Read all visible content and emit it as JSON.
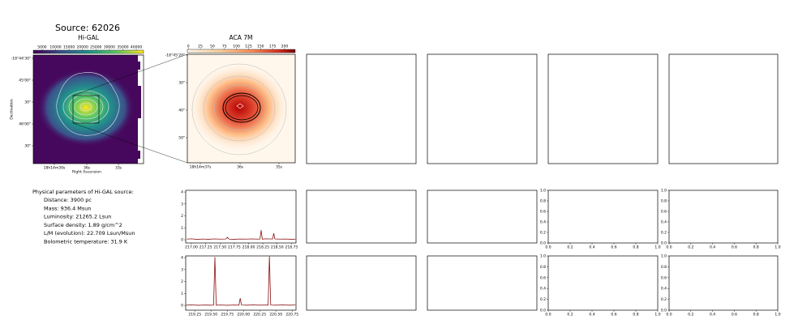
{
  "title": "Source: 62026",
  "higal": {
    "title": "Hi-GAL",
    "colorbar_lim": [
      1700,
      42700
    ],
    "colorbar_ticks": [
      5000,
      10000,
      15000,
      20000,
      25000,
      30000,
      35000,
      40000
    ],
    "xticks": [
      "18h14m39s",
      "36s",
      "33s"
    ],
    "yticks": [
      "-18°44'30\"",
      "45'00\"",
      "30\"",
      "46'00\"",
      "30\""
    ],
    "xlabel": "Right Ascension",
    "ylabel": "Declination"
  },
  "aca": {
    "title": "ACA 7M",
    "colorbar_lim": [
      -2,
      222
    ],
    "colorbar_ticks": [
      0,
      25,
      50,
      75,
      100,
      125,
      150,
      175,
      200
    ],
    "xticks": [
      "18h14m37s",
      "36s",
      "35s"
    ],
    "yticks": [
      "-18°45'20\"",
      "30\"",
      "40\"",
      "50\""
    ]
  },
  "params": {
    "heading": "Physical parameters of Hi-GAL source:",
    "lines": [
      "Distance: 3900 pc",
      "Mass: 936.4 Msun",
      "Luminosity: 21265.2 Lsun",
      "Surface density: 1.89 g/cm^2",
      "L/M (evolution): 22.709 Lsun/Msun",
      "Bolometric temperature: 31.9 K"
    ]
  },
  "chart_data": [
    {
      "type": "line",
      "xlim": [
        216.9,
        218.83
      ],
      "ylim": [
        -0.27,
        4.14
      ],
      "xticks": [
        {
          "value": 217,
          "label": "217.00"
        },
        217.25,
        {
          "value": 217.5,
          "label": "217.50"
        },
        217.75,
        {
          "value": 218,
          "label": "218.00"
        },
        218.25,
        {
          "value": 218.5,
          "label": "218.50"
        },
        218.75
      ],
      "yticks": [
        0,
        1,
        2,
        3,
        4
      ],
      "x": [
        216.92,
        217.0,
        217.1,
        217.2,
        217.3,
        217.4,
        217.5,
        217.6,
        217.63,
        217.66,
        217.75,
        217.85,
        217.95,
        218.05,
        218.15,
        218.2,
        218.22,
        218.24,
        218.3,
        218.42,
        218.44,
        218.46,
        218.55,
        218.65,
        218.75,
        218.82
      ],
      "series": [
        {
          "color": "#8b1010",
          "values": [
            0.05,
            0.08,
            0.03,
            0.06,
            0.04,
            0.07,
            0.05,
            0.06,
            0.2,
            0.05,
            0.04,
            0.06,
            0.05,
            0.07,
            0.05,
            0.06,
            0.8,
            0.05,
            0.08,
            0.06,
            0.55,
            0.07,
            0.05,
            0.06,
            0.04,
            0.05
          ]
        }
      ]
    },
    {
      "type": "line",
      "xlim": [
        219.11,
        220.81
      ],
      "ylim": [
        -0.4,
        4.14
      ],
      "xticks": [
        219.25,
        {
          "value": 219.5,
          "label": "219.50"
        },
        219.75,
        {
          "value": 220,
          "label": "220.00"
        },
        220.25,
        {
          "value": 220.5,
          "label": "220.50"
        },
        220.75
      ],
      "yticks": [
        0,
        1,
        2,
        3,
        4
      ],
      "x": [
        219.12,
        219.2,
        219.3,
        219.4,
        219.5,
        219.54,
        219.56,
        219.58,
        219.65,
        219.75,
        219.85,
        219.93,
        219.95,
        219.97,
        220.05,
        220.15,
        220.25,
        220.35,
        220.38,
        220.4,
        220.42,
        220.5,
        220.6,
        220.7,
        220.8
      ],
      "series": [
        {
          "color": "#8b1010",
          "values": [
            0.02,
            0.04,
            0.01,
            0.03,
            0.02,
            0.03,
            4.05,
            0.02,
            0.03,
            0.01,
            0.03,
            0.02,
            0.6,
            0.03,
            0.02,
            0.04,
            0.02,
            0.03,
            0.02,
            4.1,
            0.03,
            0.02,
            0.04,
            0.02,
            0.03
          ]
        }
      ]
    },
    {
      "type": "line",
      "xlim": [
        0,
        1
      ],
      "ylim": [
        0,
        1
      ],
      "xticks": [
        {
          "value": 0,
          "label": "0.0"
        },
        0.2,
        0.4,
        0.6,
        0.8,
        {
          "value": 1,
          "label": "1.0"
        }
      ],
      "yticks": [
        {
          "value": 0,
          "label": "0.0"
        },
        0.2,
        0.4,
        0.6,
        0.8,
        {
          "value": 1,
          "label": "1.0"
        }
      ]
    },
    {
      "type": "line",
      "xlim": [
        0,
        1
      ],
      "ylim": [
        0,
        1
      ],
      "xticks": [
        {
          "value": 0,
          "label": "0.0"
        },
        0.2,
        0.4,
        0.6,
        0.8,
        {
          "value": 1,
          "label": "1.0"
        }
      ],
      "yticks": [
        {
          "value": 0,
          "label": "0.0"
        },
        0.2,
        0.4,
        0.6,
        0.8,
        {
          "value": 1,
          "label": "1.0"
        }
      ]
    },
    {
      "type": "line",
      "xlim": [
        0,
        1
      ],
      "ylim": [
        0,
        1
      ],
      "xticks": [
        {
          "value": 0,
          "label": "0.0"
        },
        0.2,
        0.4,
        0.6,
        0.8,
        {
          "value": 1,
          "label": "1.0"
        }
      ],
      "yticks": [
        {
          "value": 0,
          "label": "0.0"
        },
        0.2,
        0.4,
        0.6,
        0.8,
        {
          "value": 1,
          "label": "1.0"
        }
      ]
    },
    {
      "type": "line",
      "xlim": [
        0,
        1
      ],
      "ylim": [
        0,
        1
      ],
      "xticks": [
        {
          "value": 0,
          "label": "0.0"
        },
        0.2,
        0.4,
        0.6,
        0.8,
        {
          "value": 1,
          "label": "1.0"
        }
      ],
      "yticks": [
        {
          "value": 0,
          "label": "0.0"
        },
        0.2,
        0.4,
        0.6,
        0.8,
        {
          "value": 1,
          "label": "1.0"
        }
      ]
    }
  ]
}
